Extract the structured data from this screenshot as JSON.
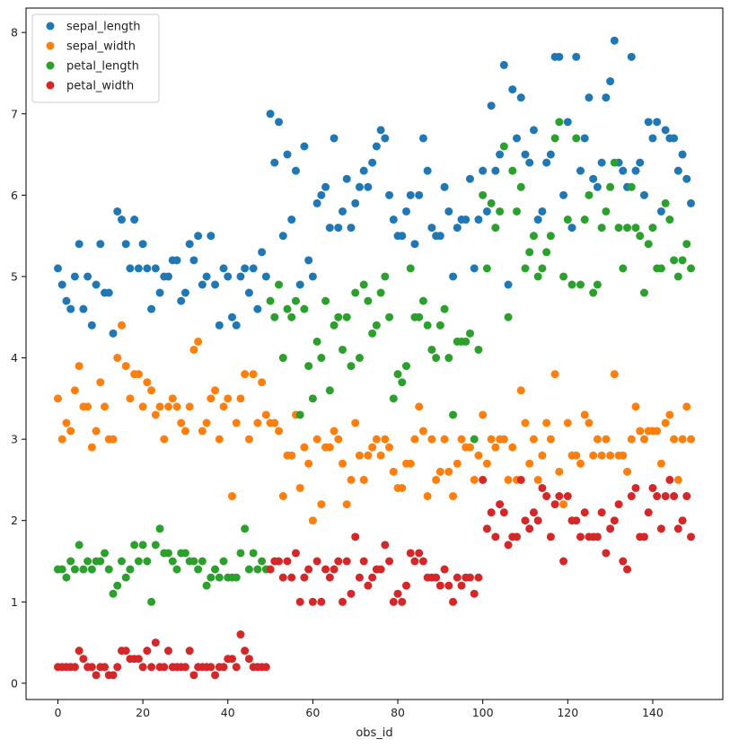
{
  "chart_data": {
    "type": "scatter",
    "xlabel": "obs_id",
    "ylabel": "",
    "xlim": [
      -7.5,
      156.5
    ],
    "ylim": [
      -0.2,
      8.3
    ],
    "xticks": [
      0,
      20,
      40,
      60,
      80,
      100,
      120,
      140
    ],
    "yticks": [
      0,
      1,
      2,
      3,
      4,
      5,
      6,
      7,
      8
    ],
    "grid": false,
    "legend_position": "upper-left",
    "series": [
      {
        "name": "sepal_length",
        "color": "#1f77b4",
        "values": [
          5.1,
          4.9,
          4.7,
          4.6,
          5.0,
          5.4,
          4.6,
          5.0,
          4.4,
          4.9,
          5.4,
          4.8,
          4.8,
          4.3,
          5.8,
          5.7,
          5.4,
          5.1,
          5.7,
          5.1,
          5.4,
          5.1,
          4.6,
          5.1,
          4.8,
          5.0,
          5.0,
          5.2,
          5.2,
          4.7,
          4.8,
          5.4,
          5.2,
          5.5,
          4.9,
          5.0,
          5.5,
          4.9,
          4.4,
          5.1,
          5.0,
          4.5,
          4.4,
          5.0,
          5.1,
          4.8,
          5.1,
          4.6,
          5.3,
          5.0,
          7.0,
          6.4,
          6.9,
          5.5,
          6.5,
          5.7,
          6.3,
          4.9,
          6.6,
          5.2,
          5.0,
          5.9,
          6.0,
          6.1,
          5.6,
          6.7,
          5.6,
          5.8,
          6.2,
          5.6,
          5.9,
          6.1,
          6.3,
          6.1,
          6.4,
          6.6,
          6.8,
          6.7,
          6.0,
          5.7,
          5.5,
          5.5,
          5.8,
          6.0,
          5.4,
          6.0,
          6.7,
          6.3,
          5.6,
          5.5,
          5.5,
          6.1,
          5.8,
          5.0,
          5.6,
          5.7,
          5.7,
          6.2,
          5.1,
          5.7,
          6.3,
          5.8,
          7.1,
          6.3,
          6.5,
          7.6,
          4.9,
          7.3,
          6.7,
          7.2,
          6.5,
          6.4,
          6.8,
          5.7,
          5.8,
          6.4,
          6.5,
          7.7,
          7.7,
          6.0,
          6.9,
          5.6,
          7.7,
          6.3,
          6.7,
          7.2,
          6.2,
          6.1,
          6.4,
          7.2,
          7.4,
          7.9,
          6.4,
          6.3,
          6.1,
          7.7,
          6.3,
          6.4,
          6.0,
          6.9,
          6.7,
          6.9,
          5.8,
          6.8,
          6.7,
          6.7,
          6.3,
          6.5,
          6.2,
          5.9
        ]
      },
      {
        "name": "sepal_width",
        "color": "#ff7f0e",
        "values": [
          3.5,
          3.0,
          3.2,
          3.1,
          3.6,
          3.9,
          3.4,
          3.4,
          2.9,
          3.1,
          3.7,
          3.4,
          3.0,
          3.0,
          4.0,
          4.4,
          3.9,
          3.5,
          3.8,
          3.8,
          3.4,
          3.7,
          3.6,
          3.3,
          3.4,
          3.0,
          3.4,
          3.5,
          3.4,
          3.2,
          3.1,
          3.4,
          4.1,
          4.2,
          3.1,
          3.2,
          3.5,
          3.6,
          3.0,
          3.4,
          3.5,
          2.3,
          3.2,
          3.5,
          3.8,
          3.0,
          3.8,
          3.2,
          3.7,
          3.3,
          3.2,
          3.2,
          3.1,
          2.3,
          2.8,
          2.8,
          3.3,
          2.4,
          2.9,
          2.7,
          2.0,
          3.0,
          2.2,
          2.9,
          2.9,
          3.1,
          3.0,
          2.7,
          2.2,
          2.5,
          3.2,
          2.8,
          2.5,
          2.8,
          2.9,
          3.0,
          2.8,
          3.0,
          2.9,
          2.6,
          2.4,
          2.4,
          2.7,
          2.7,
          3.0,
          3.4,
          3.1,
          2.3,
          3.0,
          2.5,
          2.6,
          3.0,
          2.6,
          2.3,
          2.7,
          3.0,
          2.9,
          2.9,
          2.5,
          2.8,
          3.3,
          2.7,
          3.0,
          2.9,
          3.0,
          3.0,
          2.5,
          2.9,
          2.5,
          3.6,
          3.2,
          2.7,
          3.0,
          2.5,
          2.8,
          3.2,
          3.0,
          3.8,
          2.6,
          2.2,
          3.2,
          2.8,
          2.8,
          2.7,
          3.3,
          3.2,
          2.8,
          3.0,
          2.8,
          3.0,
          2.8,
          3.8,
          2.8,
          2.8,
          2.6,
          3.0,
          3.4,
          3.1,
          3.0,
          3.1,
          3.1,
          3.1,
          2.7,
          3.2,
          3.3,
          3.0,
          2.5,
          3.0,
          3.4,
          3.0
        ]
      },
      {
        "name": "petal_length",
        "color": "#2ca02c",
        "values": [
          1.4,
          1.4,
          1.3,
          1.5,
          1.4,
          1.7,
          1.4,
          1.5,
          1.4,
          1.5,
          1.5,
          1.6,
          1.4,
          1.1,
          1.2,
          1.5,
          1.3,
          1.4,
          1.7,
          1.5,
          1.7,
          1.5,
          1.0,
          1.7,
          1.9,
          1.6,
          1.6,
          1.5,
          1.4,
          1.6,
          1.6,
          1.5,
          1.5,
          1.4,
          1.5,
          1.2,
          1.3,
          1.4,
          1.3,
          1.5,
          1.3,
          1.3,
          1.3,
          1.6,
          1.9,
          1.4,
          1.6,
          1.4,
          1.5,
          1.4,
          4.7,
          4.5,
          4.9,
          4.0,
          4.6,
          4.5,
          4.7,
          3.3,
          4.6,
          3.9,
          3.5,
          4.2,
          4.0,
          4.7,
          3.6,
          4.4,
          4.5,
          4.1,
          4.5,
          3.9,
          4.8,
          4.0,
          4.9,
          4.7,
          4.3,
          4.4,
          4.8,
          5.0,
          4.5,
          3.5,
          3.8,
          3.7,
          3.9,
          5.1,
          4.5,
          4.5,
          4.7,
          4.4,
          4.1,
          4.0,
          4.4,
          4.6,
          4.0,
          3.3,
          4.2,
          4.2,
          4.2,
          4.3,
          3.0,
          4.1,
          6.0,
          5.1,
          5.9,
          5.6,
          5.8,
          6.6,
          4.5,
          6.3,
          5.8,
          6.1,
          5.1,
          5.3,
          5.5,
          5.0,
          5.1,
          5.3,
          5.5,
          6.7,
          6.9,
          5.0,
          5.7,
          4.9,
          6.7,
          4.9,
          5.7,
          6.0,
          4.8,
          4.9,
          5.6,
          5.8,
          6.1,
          6.4,
          5.6,
          5.1,
          5.6,
          6.1,
          5.6,
          5.5,
          4.8,
          5.4,
          5.6,
          5.1,
          5.1,
          5.9,
          5.7,
          5.2,
          5.0,
          5.2,
          5.4,
          5.1
        ]
      },
      {
        "name": "petal_width",
        "color": "#d62728",
        "values": [
          0.2,
          0.2,
          0.2,
          0.2,
          0.2,
          0.4,
          0.3,
          0.2,
          0.2,
          0.1,
          0.2,
          0.2,
          0.1,
          0.1,
          0.2,
          0.4,
          0.4,
          0.3,
          0.3,
          0.3,
          0.2,
          0.4,
          0.2,
          0.5,
          0.2,
          0.2,
          0.4,
          0.2,
          0.2,
          0.2,
          0.2,
          0.4,
          0.1,
          0.2,
          0.2,
          0.2,
          0.2,
          0.1,
          0.2,
          0.2,
          0.3,
          0.3,
          0.2,
          0.6,
          0.4,
          0.3,
          0.2,
          0.2,
          0.2,
          0.2,
          1.4,
          1.5,
          1.5,
          1.3,
          1.5,
          1.3,
          1.6,
          1.0,
          1.3,
          1.4,
          1.0,
          1.5,
          1.0,
          1.4,
          1.3,
          1.4,
          1.5,
          1.0,
          1.5,
          1.1,
          1.8,
          1.3,
          1.5,
          1.2,
          1.3,
          1.4,
          1.4,
          1.7,
          1.5,
          1.0,
          1.1,
          1.0,
          1.2,
          1.6,
          1.5,
          1.6,
          1.5,
          1.3,
          1.3,
          1.3,
          1.2,
          1.4,
          1.2,
          1.0,
          1.3,
          1.2,
          1.3,
          1.3,
          1.1,
          1.3,
          2.5,
          1.9,
          2.1,
          1.8,
          2.2,
          2.1,
          1.7,
          1.8,
          1.8,
          2.5,
          2.0,
          1.9,
          2.1,
          2.0,
          2.4,
          2.3,
          1.8,
          2.2,
          2.3,
          1.5,
          2.3,
          2.0,
          2.0,
          1.8,
          2.1,
          1.8,
          1.8,
          1.8,
          2.1,
          1.6,
          1.9,
          2.0,
          2.2,
          1.5,
          1.4,
          2.3,
          2.4,
          1.8,
          1.8,
          2.1,
          2.4,
          2.3,
          1.9,
          2.3,
          2.5,
          2.3,
          1.9,
          2.0,
          2.3,
          1.8
        ]
      }
    ]
  }
}
